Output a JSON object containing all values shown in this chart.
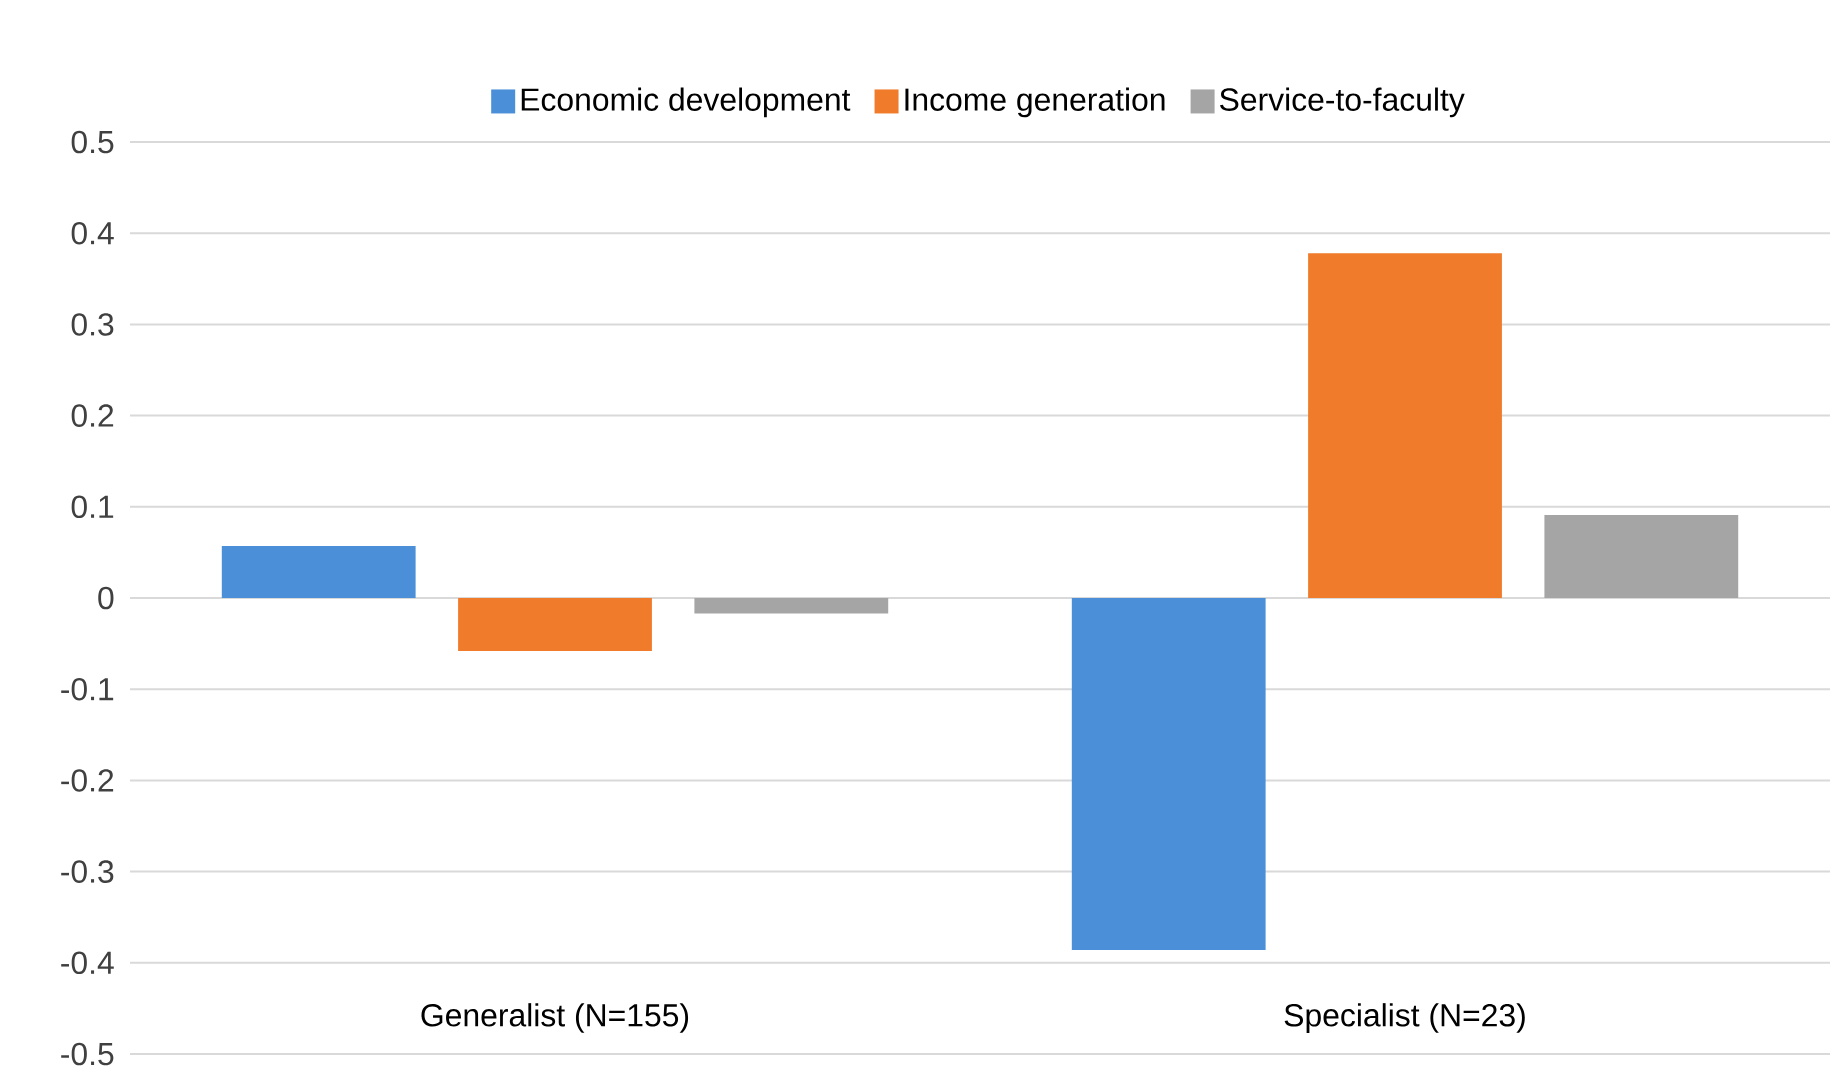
{
  "chart_data": {
    "type": "bar",
    "categories": [
      "Generalist (N=155)",
      "Specialist (N=23)"
    ],
    "series": [
      {
        "name": "Economic development",
        "color": "#4a8fd8",
        "values": [
          0.057,
          -0.386
        ]
      },
      {
        "name": "Income generation",
        "color": "#f07b2a",
        "values": [
          -0.058,
          0.378
        ]
      },
      {
        "name": "Service-to-faculty",
        "color": "#a5a5a5",
        "values": [
          -0.017,
          0.091
        ]
      }
    ],
    "ylim": [
      -0.5,
      0.5
    ],
    "yticks": [
      -0.5,
      -0.4,
      -0.3,
      -0.2,
      -0.1,
      0,
      0.1,
      0.2,
      0.3,
      0.4,
      0.5
    ],
    "grid": "y",
    "legend": "top"
  }
}
